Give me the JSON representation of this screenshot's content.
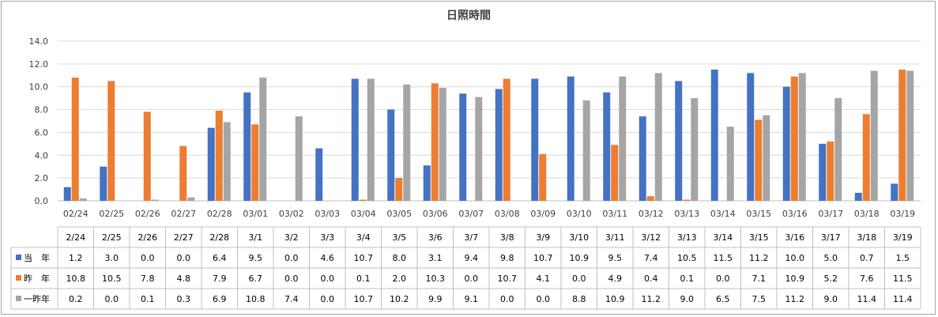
{
  "chart_data": {
    "type": "bar",
    "title": "日照時間",
    "xlabel": "",
    "ylabel": "",
    "ylim": [
      0,
      14
    ],
    "yticks": [
      "0.0",
      "2.0",
      "4.0",
      "6.0",
      "8.0",
      "10.0",
      "12.0",
      "14.0"
    ],
    "grid": true,
    "categories": [
      "02/24",
      "02/25",
      "02/26",
      "02/27",
      "02/28",
      "03/01",
      "03/02",
      "03/03",
      "03/04",
      "03/05",
      "03/06",
      "03/07",
      "03/08",
      "03/09",
      "03/10",
      "03/11",
      "03/12",
      "03/13",
      "03/14",
      "03/15",
      "03/16",
      "03/17",
      "03/18",
      "03/19"
    ],
    "table_categories": [
      "2/24",
      "2/25",
      "2/26",
      "2/27",
      "2/28",
      "3/1",
      "3/2",
      "3/3",
      "3/4",
      "3/5",
      "3/6",
      "3/7",
      "3/8",
      "3/9",
      "3/10",
      "3/11",
      "3/12",
      "3/13",
      "3/14",
      "3/15",
      "3/16",
      "3/17",
      "3/18",
      "3/19"
    ],
    "series": [
      {
        "name": "当　年",
        "color": "#4472c4",
        "values": [
          1.2,
          3.0,
          0.0,
          0.0,
          6.4,
          9.5,
          0.0,
          4.6,
          10.7,
          8.0,
          3.1,
          9.4,
          9.8,
          10.7,
          10.9,
          9.5,
          7.4,
          10.5,
          11.5,
          11.2,
          10.0,
          5.0,
          0.7,
          1.5
        ]
      },
      {
        "name": "昨　年",
        "color": "#ed7d31",
        "values": [
          10.8,
          10.5,
          7.8,
          4.8,
          7.9,
          6.7,
          0.0,
          0.0,
          0.1,
          2.0,
          10.3,
          0.0,
          10.7,
          4.1,
          0.0,
          4.9,
          0.4,
          0.1,
          0.0,
          7.1,
          10.9,
          5.2,
          7.6,
          11.5
        ]
      },
      {
        "name": "一昨年",
        "color": "#a5a5a5",
        "values": [
          0.2,
          0.0,
          0.1,
          0.3,
          6.9,
          10.8,
          7.4,
          0.0,
          10.7,
          10.2,
          9.9,
          9.1,
          0.0,
          0.0,
          8.8,
          10.9,
          11.2,
          9.0,
          6.5,
          7.5,
          11.2,
          9.0,
          11.4,
          11.4
        ]
      }
    ]
  }
}
